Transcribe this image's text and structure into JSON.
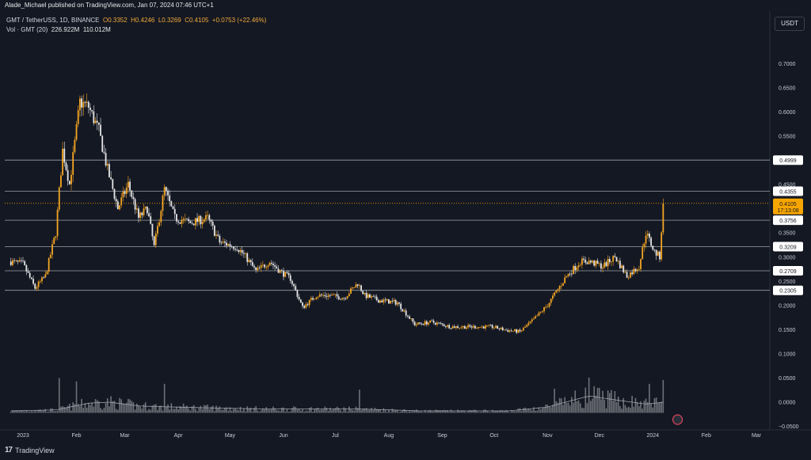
{
  "header": {
    "published": "Alade_Michael published on TradingView.com, Jan 07, 2024 07:46 UTC+1",
    "symbol": "GMT / TetherUSS, 1D, BINANCE",
    "open": "O0.3352",
    "high": "H0.4246",
    "low": "L0.3269",
    "close": "C0.4105",
    "change": "+0.0753 (+22.46%)",
    "vol_label": "Vol · GMT (20)",
    "vol_value": "226.922M",
    "vol_ma": "110.012M",
    "currency_button": "USDT"
  },
  "watermark": {
    "logo": "17",
    "text": "TradingView"
  },
  "chart_data": {
    "type": "candlestick",
    "title": "GMT / TetherUS, 1D, BINANCE",
    "y_axis": {
      "ticks": [
        "0.7000",
        "0.6500",
        "0.6000",
        "0.5500",
        "0.4500",
        "0.3500",
        "0.3000",
        "0.2500",
        "0.2000",
        "0.1500",
        "0.1000",
        "0.0500",
        "0.0000",
        "−0.0500"
      ],
      "tick_values": [
        0.7,
        0.65,
        0.6,
        0.55,
        0.45,
        0.35,
        0.3,
        0.25,
        0.2,
        0.15,
        0.1,
        0.05,
        0.0,
        -0.05
      ],
      "ylim": [
        -0.05,
        0.72
      ]
    },
    "x_axis": {
      "ticks": [
        "2023",
        "Feb",
        "Mar",
        "Apr",
        "May",
        "Jun",
        "Jul",
        "Aug",
        "Sep",
        "Oct",
        "Nov",
        "Dec",
        "2024",
        "Feb",
        "Mar"
      ],
      "tick_dates": [
        "2023-01-01",
        "2023-02-01",
        "2023-03-01",
        "2023-04-01",
        "2023-05-01",
        "2023-06-01",
        "2023-07-01",
        "2023-08-01",
        "2023-09-01",
        "2023-10-01",
        "2023-11-01",
        "2023-12-01",
        "2024-01-01",
        "2024-02-01",
        "2024-03-01"
      ]
    },
    "price_levels": [
      {
        "value": 0.4999,
        "label": "0.4999"
      },
      {
        "value": 0.4355,
        "label": "0.4355"
      },
      {
        "value": 0.3756,
        "label": "0.3756"
      },
      {
        "value": 0.3209,
        "label": "0.3209"
      },
      {
        "value": 0.2709,
        "label": "0.2709"
      },
      {
        "value": 0.2305,
        "label": "0.2305"
      }
    ],
    "last_price": {
      "value": 0.4105,
      "label": "0.4105",
      "countdown": "17:13:08",
      "color": "#f7a600"
    },
    "price_path": [
      [
        "2022-12-25",
        0.29
      ],
      [
        "2023-01-01",
        0.285
      ],
      [
        "2023-01-08",
        0.235
      ],
      [
        "2023-01-14",
        0.26
      ],
      [
        "2023-01-20",
        0.35
      ],
      [
        "2023-01-24",
        0.52
      ],
      [
        "2023-01-28",
        0.45
      ],
      [
        "2023-02-03",
        0.62
      ],
      [
        "2023-02-08",
        0.61
      ],
      [
        "2023-02-14",
        0.56
      ],
      [
        "2023-02-19",
        0.48
      ],
      [
        "2023-02-25",
        0.4
      ],
      [
        "2023-03-03",
        0.45
      ],
      [
        "2023-03-09",
        0.38
      ],
      [
        "2023-03-14",
        0.4
      ],
      [
        "2023-03-18",
        0.32
      ],
      [
        "2023-03-24",
        0.44
      ],
      [
        "2023-03-30",
        0.38
      ],
      [
        "2023-04-08",
        0.37
      ],
      [
        "2023-04-18",
        0.38
      ],
      [
        "2023-04-25",
        0.33
      ],
      [
        "2023-05-05",
        0.32
      ],
      [
        "2023-05-10",
        0.3
      ],
      [
        "2023-05-16",
        0.27
      ],
      [
        "2023-05-24",
        0.29
      ],
      [
        "2023-05-30",
        0.27
      ],
      [
        "2023-06-05",
        0.255
      ],
      [
        "2023-06-12",
        0.195
      ],
      [
        "2023-06-20",
        0.22
      ],
      [
        "2023-06-28",
        0.22
      ],
      [
        "2023-07-06",
        0.215
      ],
      [
        "2023-07-14",
        0.245
      ],
      [
        "2023-07-18",
        0.22
      ],
      [
        "2023-07-26",
        0.21
      ],
      [
        "2023-08-06",
        0.205
      ],
      [
        "2023-08-16",
        0.16
      ],
      [
        "2023-08-26",
        0.165
      ],
      [
        "2023-09-06",
        0.155
      ],
      [
        "2023-09-20",
        0.155
      ],
      [
        "2023-09-30",
        0.155
      ],
      [
        "2023-10-08",
        0.148
      ],
      [
        "2023-10-16",
        0.145
      ],
      [
        "2023-10-24",
        0.17
      ],
      [
        "2023-11-01",
        0.2
      ],
      [
        "2023-11-12",
        0.26
      ],
      [
        "2023-11-20",
        0.29
      ],
      [
        "2023-11-25",
        0.29
      ],
      [
        "2023-12-03",
        0.28
      ],
      [
        "2023-12-10",
        0.3
      ],
      [
        "2023-12-17",
        0.26
      ],
      [
        "2023-12-24",
        0.28
      ],
      [
        "2023-12-28",
        0.35
      ],
      [
        "2024-01-02",
        0.31
      ],
      [
        "2024-01-05",
        0.3
      ],
      [
        "2024-01-07",
        0.4105
      ]
    ],
    "volume_ma_path": [
      [
        "2022-12-25",
        0.004
      ],
      [
        "2023-01-20",
        0.006
      ],
      [
        "2023-02-08",
        0.02
      ],
      [
        "2023-02-20",
        0.022
      ],
      [
        "2023-03-10",
        0.014
      ],
      [
        "2023-04-10",
        0.011
      ],
      [
        "2023-05-20",
        0.008
      ],
      [
        "2023-07-15",
        0.008
      ],
      [
        "2023-08-20",
        0.004
      ],
      [
        "2023-10-10",
        0.004
      ],
      [
        "2023-11-01",
        0.012
      ],
      [
        "2023-11-25",
        0.035
      ],
      [
        "2023-12-10",
        0.027
      ],
      [
        "2023-12-28",
        0.018
      ],
      [
        "2024-01-07",
        0.022
      ]
    ],
    "volume_peaks": [
      [
        "2023-01-22",
        0.072
      ],
      [
        "2023-02-01",
        0.065
      ],
      [
        "2023-03-24",
        0.06
      ],
      [
        "2023-07-15",
        0.048
      ],
      [
        "2023-11-05",
        0.05
      ],
      [
        "2023-11-25",
        0.073
      ],
      [
        "2023-12-30",
        0.06
      ],
      [
        "2024-01-07",
        0.068
      ]
    ],
    "colors": {
      "up": "#f5a623",
      "down": "#e6e6e6",
      "volume": "#8c8f96",
      "level_line": "#9aa0a6",
      "background": "#141823",
      "grid": "#1e2230"
    },
    "grid": true
  }
}
